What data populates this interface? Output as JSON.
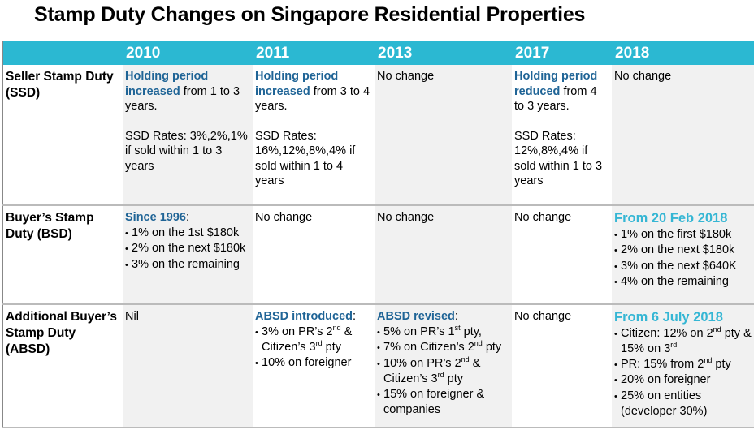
{
  "title": "Stamp Duty Changes on Singapore Residential Properties",
  "colors": {
    "header_bg": "#2bb8d2",
    "highlight_dark_blue": "#1f6496",
    "highlight_light_blue": "#35b6d4",
    "shaded_cell": "#f1f1f1"
  },
  "columns": [
    "",
    "2010",
    "2011",
    "2013",
    "2017",
    "2018"
  ],
  "rows": [
    {
      "label": "Seller Stamp Duty (SSD)",
      "cells": [
        [
          {
            "type": "p",
            "seg": [
              {
                "b": "Holding period increased"
              },
              {
                "t": " from 1 to 3 years."
              }
            ]
          },
          {
            "type": "gap"
          },
          {
            "type": "p",
            "seg": [
              {
                "t": "SSD Rates: 3%,2%,1% if sold within 1 to 3 years"
              }
            ]
          }
        ],
        [
          {
            "type": "p",
            "seg": [
              {
                "b": "Holding period increased"
              },
              {
                "t": " from 3 to 4 years."
              }
            ]
          },
          {
            "type": "gap"
          },
          {
            "type": "p",
            "seg": [
              {
                "t": "SSD Rates: 16%,12%,8%,4% if sold within 1 to 4 years"
              }
            ]
          }
        ],
        [
          {
            "type": "p",
            "seg": [
              {
                "t": "No change"
              }
            ]
          }
        ],
        [
          {
            "type": "p",
            "seg": [
              {
                "b": "Holding period reduced"
              },
              {
                "t": " from 4 to 3 years."
              }
            ]
          },
          {
            "type": "gap"
          },
          {
            "type": "p",
            "seg": [
              {
                "t": "SSD Rates: 12%,8%,4% if sold within 1 to 3 years"
              }
            ]
          }
        ],
        [
          {
            "type": "p",
            "seg": [
              {
                "t": "No change"
              }
            ]
          }
        ]
      ]
    },
    {
      "label": "Buyer’s Stamp Duty (BSD)",
      "cells": [
        [
          {
            "type": "p",
            "seg": [
              {
                "b": "Since 1996"
              },
              {
                "t": ":"
              }
            ]
          },
          {
            "type": "li",
            "seg": [
              {
                "t": "1% on the 1st $180k"
              }
            ]
          },
          {
            "type": "li",
            "seg": [
              {
                "t": "2% on the next $180k"
              }
            ]
          },
          {
            "type": "li",
            "seg": [
              {
                "t": "3% on the remaining"
              }
            ]
          }
        ],
        [
          {
            "type": "p",
            "seg": [
              {
                "t": "No change"
              }
            ]
          }
        ],
        [
          {
            "type": "p",
            "seg": [
              {
                "t": "No change"
              }
            ]
          }
        ],
        [
          {
            "type": "p",
            "seg": [
              {
                "t": "No change"
              }
            ]
          }
        ],
        [
          {
            "type": "p",
            "seg": [
              {
                "h": "From 20 Feb 2018"
              }
            ]
          },
          {
            "type": "li",
            "seg": [
              {
                "t": "1% on the first $180k"
              }
            ]
          },
          {
            "type": "li",
            "seg": [
              {
                "t": "2% on the next $180k"
              }
            ]
          },
          {
            "type": "li",
            "seg": [
              {
                "t": "3% on the next $640K"
              }
            ]
          },
          {
            "type": "li",
            "seg": [
              {
                "t": "4% on the remaining"
              }
            ]
          }
        ]
      ]
    },
    {
      "label": "Additional Buyer’s Stamp Duty (ABSD)",
      "cells": [
        [
          {
            "type": "p",
            "seg": [
              {
                "t": "Nil"
              }
            ]
          }
        ],
        [
          {
            "type": "p",
            "seg": [
              {
                "b": "ABSD introduced"
              },
              {
                "t": ":"
              }
            ]
          },
          {
            "type": "li",
            "seg": [
              {
                "t": "3% on PR’s 2"
              },
              {
                "s": "nd"
              },
              {
                "t": " & Citizen’s 3"
              },
              {
                "s": "rd"
              },
              {
                "t": " pty"
              }
            ]
          },
          {
            "type": "li",
            "seg": [
              {
                "t": "10% on foreigner"
              }
            ]
          }
        ],
        [
          {
            "type": "p",
            "seg": [
              {
                "b": "ABSD revised"
              },
              {
                "t": ":"
              }
            ]
          },
          {
            "type": "li",
            "seg": [
              {
                "t": "5% on PR’s 1"
              },
              {
                "s": "st"
              },
              {
                "t": " pty,"
              }
            ]
          },
          {
            "type": "li",
            "seg": [
              {
                "t": "7% on Citizen’s 2"
              },
              {
                "s": "nd"
              },
              {
                "t": " pty"
              }
            ]
          },
          {
            "type": "li",
            "seg": [
              {
                "t": "10% on PR’s 2"
              },
              {
                "s": "nd"
              },
              {
                "t": " & Citizen’s 3"
              },
              {
                "s": "rd"
              },
              {
                "t": " pty"
              }
            ]
          },
          {
            "type": "li",
            "seg": [
              {
                "t": "15% on foreigner & companies"
              }
            ]
          }
        ],
        [
          {
            "type": "p",
            "seg": [
              {
                "t": "No change"
              }
            ]
          }
        ],
        [
          {
            "type": "p",
            "seg": [
              {
                "h": "From 6 July 2018"
              }
            ]
          },
          {
            "type": "li",
            "seg": [
              {
                "t": "Citizen: 12% on 2"
              },
              {
                "s": "nd"
              },
              {
                "t": " pty & 15% on 3"
              },
              {
                "s": "rd"
              }
            ]
          },
          {
            "type": "li",
            "seg": [
              {
                "t": "PR: 15% from 2"
              },
              {
                "s": "nd"
              },
              {
                "t": " pty"
              }
            ]
          },
          {
            "type": "li",
            "seg": [
              {
                "t": "20% on foreigner"
              }
            ]
          },
          {
            "type": "li",
            "seg": [
              {
                "t": "25% on entities (developer 30%)"
              }
            ]
          }
        ]
      ]
    }
  ]
}
